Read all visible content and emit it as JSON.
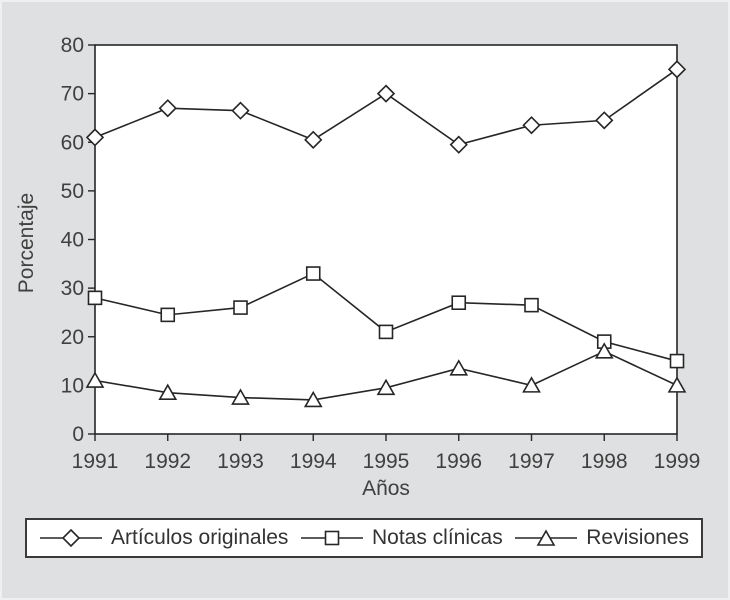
{
  "figure": {
    "background": "#dfe0e1",
    "plot_background": "#ffffff",
    "line_color": "#262626",
    "text_color": "#404040"
  },
  "chart_data": {
    "type": "line",
    "title": "",
    "xlabel": "Años",
    "ylabel": "Porcentaje",
    "x": [
      1991,
      1992,
      1993,
      1994,
      1995,
      1996,
      1997,
      1998,
      1999
    ],
    "ylim": [
      0,
      80
    ],
    "yticks": [
      0,
      10,
      20,
      30,
      40,
      50,
      60,
      70,
      80
    ],
    "grid": false,
    "legend_position": "bottom",
    "series": [
      {
        "name": "Artículos originales",
        "marker": "diamond",
        "values": [
          61,
          67,
          66.5,
          60.5,
          70,
          59.5,
          63.5,
          64.5,
          75
        ]
      },
      {
        "name": "Notas clínicas",
        "marker": "square",
        "values": [
          28,
          24.5,
          26,
          33,
          21,
          27,
          26.5,
          19,
          15
        ]
      },
      {
        "name": "Revisiones",
        "marker": "triangle",
        "values": [
          11,
          8.5,
          7.5,
          7,
          9.5,
          13.5,
          10,
          17,
          10
        ]
      }
    ]
  }
}
